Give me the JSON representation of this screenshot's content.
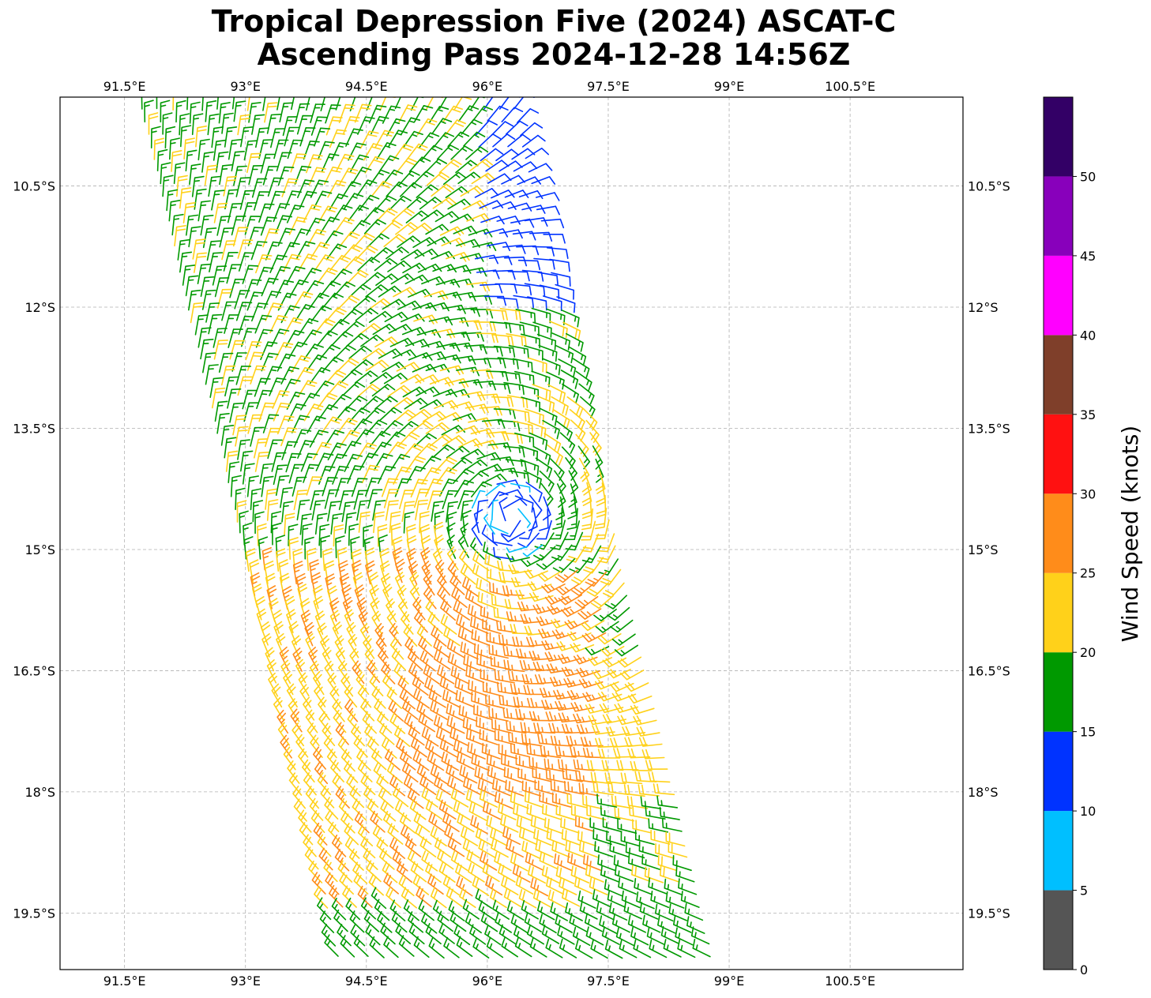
{
  "chart_data": {
    "type": "wind-barb-map",
    "title_line1": "Tropical Depression Five (2024) ASCAT-C",
    "title_line2": "Ascending Pass 2024-12-28 14:56Z",
    "lon_range": [
      90.7,
      101.9
    ],
    "lat_range": [
      -9.4,
      -20.2
    ],
    "lon_ticks": [
      {
        "value": 91.5,
        "label": "91.5°E"
      },
      {
        "value": 93.0,
        "label": "93°E"
      },
      {
        "value": 94.5,
        "label": "94.5°E"
      },
      {
        "value": 96.0,
        "label": "96°E"
      },
      {
        "value": 97.5,
        "label": "97.5°E"
      },
      {
        "value": 99.0,
        "label": "99°E"
      },
      {
        "value": 100.5,
        "label": "100.5°E"
      }
    ],
    "lat_ticks": [
      {
        "value": -10.5,
        "label": "10.5°S"
      },
      {
        "value": -12.0,
        "label": "12°S"
      },
      {
        "value": -13.5,
        "label": "13.5°S"
      },
      {
        "value": -15.0,
        "label": "15°S"
      },
      {
        "value": -16.5,
        "label": "16.5°S"
      },
      {
        "value": -18.0,
        "label": "18°S"
      },
      {
        "value": -19.5,
        "label": "19.5°S"
      }
    ],
    "grid": true,
    "swath": {
      "corners": [
        [
          91.6,
          -9.4
        ],
        [
          96.4,
          -9.4
        ],
        [
          98.9,
          -20.2
        ],
        [
          94.1,
          -20.2
        ]
      ]
    },
    "storm_center": {
      "lon": 96.3,
      "lat": -14.6
    },
    "colorbar": {
      "label": "Wind Speed (knots)",
      "bounds": [
        0,
        5,
        10,
        15,
        20,
        25,
        30,
        35,
        40,
        45,
        50,
        55
      ],
      "tick_values": [
        0,
        5,
        10,
        15,
        20,
        25,
        30,
        35,
        40,
        45,
        50
      ],
      "tick_labels": [
        "0",
        "5",
        "10",
        "15",
        "20",
        "25",
        "30",
        "35",
        "40",
        "45",
        "50"
      ],
      "colors": [
        "#555555",
        "#00bfff",
        "#0033ff",
        "#009900",
        "#ffd11a",
        "#ff8c1a",
        "#ff1111",
        "#7f3f2a",
        "#ff00ff",
        "#8800bb",
        "#330066"
      ]
    }
  }
}
